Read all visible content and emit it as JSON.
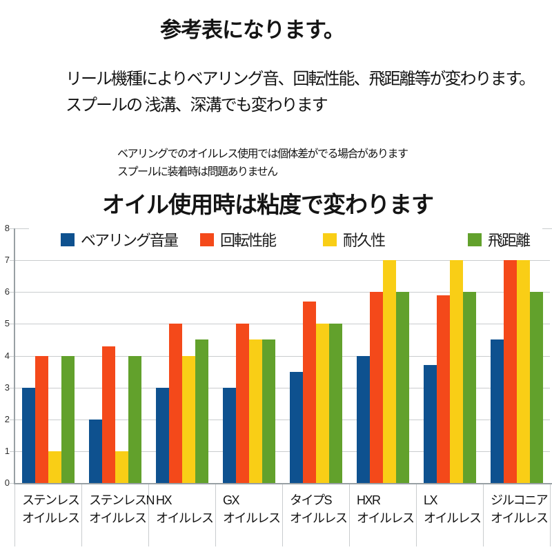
{
  "page": {
    "title": "参考表になります。",
    "note_line1": "リール機種によりベアリング音、回転性能、飛距離等が変わります。",
    "note_line2": "スプールの 浅溝、深溝でも変わります",
    "sub_note_line1": "ベアリングでのオイルレス使用では個体差がでる場合があります",
    "sub_note_line2": "スプールに装着時は問題ありません",
    "chart_heading": "オイル使用時は粘度で変わります"
  },
  "chart_data": {
    "type": "bar",
    "title": "オイル使用時は粘度で変わります",
    "categories": [
      [
        "ステンレス",
        "オイルレス"
      ],
      [
        "ステンレスN",
        "オイルレス"
      ],
      [
        "HX",
        "オイルレス"
      ],
      [
        "GX",
        "オイルレス"
      ],
      [
        "タイプS",
        "オイルレス"
      ],
      [
        "HXR",
        "オイルレス"
      ],
      [
        "LX",
        "オイルレス"
      ],
      [
        "ジルコニア",
        "オイルレス"
      ]
    ],
    "series": [
      {
        "name": "ベアリング音量",
        "color": "#0e518f",
        "values": [
          3,
          2,
          3,
          3,
          3.5,
          4,
          3.7,
          4.5
        ]
      },
      {
        "name": "回転性能",
        "color": "#f4491a",
        "values": [
          4,
          4.3,
          5,
          5,
          5.7,
          6,
          5.9,
          7
        ]
      },
      {
        "name": "耐久性",
        "color": "#f9ce16",
        "values": [
          1,
          1,
          4,
          4.5,
          5,
          7,
          7,
          7
        ]
      },
      {
        "name": "飛距離",
        "color": "#62a12c",
        "values": [
          4,
          4,
          4.5,
          4.5,
          5,
          6,
          6,
          6
        ]
      }
    ],
    "ylim": [
      0,
      8
    ],
    "yticks": [
      0,
      1,
      2,
      3,
      4,
      5,
      6,
      7,
      8
    ],
    "grid": true,
    "legend_position": "top"
  }
}
